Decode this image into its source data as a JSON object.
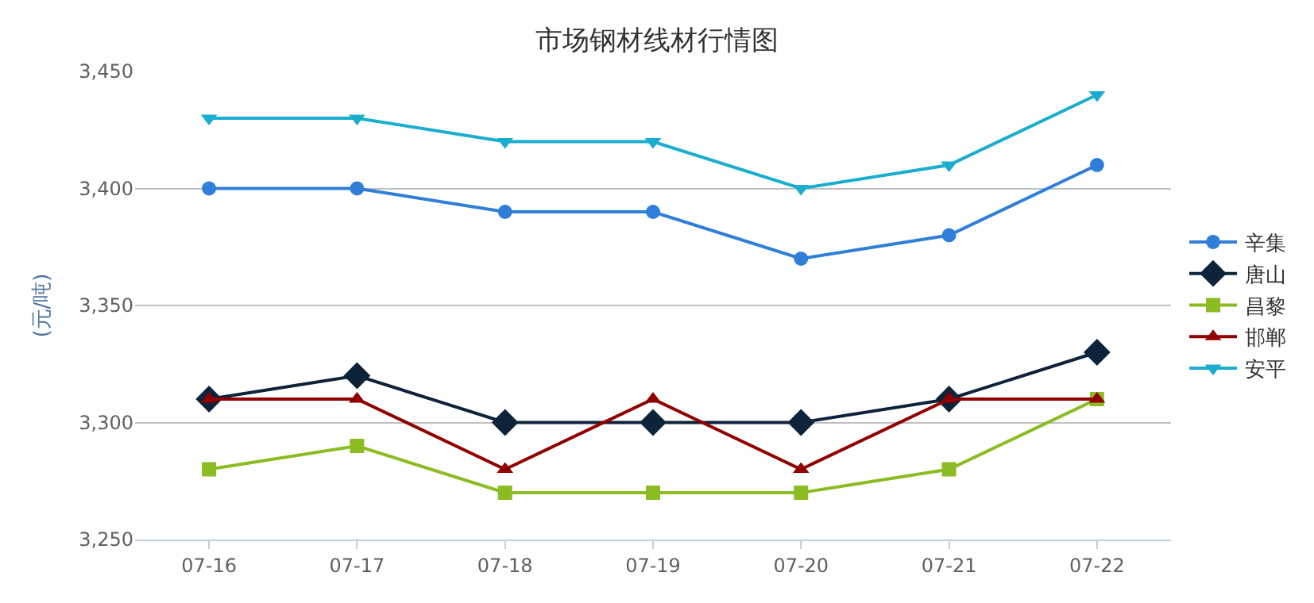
{
  "chart_data": {
    "type": "line",
    "title": "市场钢材线材行情图",
    "ylabel": "(元/吨)",
    "categories": [
      "07-16",
      "07-17",
      "07-18",
      "07-19",
      "07-20",
      "07-21",
      "07-22"
    ],
    "series": [
      {
        "name": "辛集",
        "color": "#2f7ed8",
        "marker": "circle",
        "values": [
          3400,
          3400,
          3390,
          3390,
          3370,
          3380,
          3410
        ]
      },
      {
        "name": "唐山",
        "color": "#0d233a",
        "marker": "diamond",
        "values": [
          3310,
          3320,
          3300,
          3300,
          3300,
          3310,
          3330
        ]
      },
      {
        "name": "昌黎",
        "color": "#8bbc21",
        "marker": "square",
        "values": [
          3280,
          3290,
          3270,
          3270,
          3270,
          3280,
          3310
        ]
      },
      {
        "name": "邯郸",
        "color": "#910000",
        "marker": "triangle",
        "values": [
          3310,
          3310,
          3280,
          3310,
          3280,
          3310,
          3310
        ]
      },
      {
        "name": "安平",
        "color": "#1aadce",
        "marker": "triangle-down",
        "values": [
          3430,
          3430,
          3420,
          3420,
          3400,
          3410,
          3440
        ]
      }
    ],
    "ylim": [
      3250,
      3450
    ],
    "yticks": [
      {
        "value": 3250,
        "label": "3,250"
      },
      {
        "value": 3300,
        "label": "3,300"
      },
      {
        "value": 3350,
        "label": "3,350"
      },
      {
        "value": 3400,
        "label": "3,400"
      },
      {
        "value": 3450,
        "label": "3,450"
      }
    ],
    "grid": "y",
    "legend": "right",
    "line_style": "solid"
  }
}
